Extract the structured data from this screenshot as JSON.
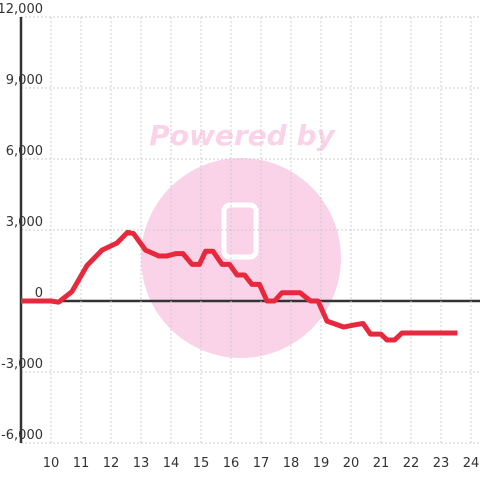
{
  "chart_data": {
    "type": "line",
    "watermark": "Powered by",
    "x": [
      9,
      10,
      10.25,
      10.7,
      11.2,
      11.7,
      12.2,
      12.55,
      12.75,
      13.15,
      13.6,
      13.85,
      14.15,
      14.4,
      14.7,
      14.95,
      15.15,
      15.4,
      15.7,
      15.95,
      16.2,
      16.45,
      16.7,
      16.95,
      17.2,
      17.45,
      17.7,
      18.3,
      18.65,
      18.9,
      19.2,
      19.75,
      20.15,
      20.4,
      20.65,
      21,
      21.2,
      21.45,
      21.7,
      23.55
    ],
    "series": [
      {
        "color": "#e8283c",
        "values": [
          0,
          0,
          -50,
          400,
          1500,
          2150,
          2450,
          2900,
          2850,
          2150,
          1900,
          1900,
          2000,
          2000,
          1550,
          1550,
          2100,
          2100,
          1550,
          1550,
          1100,
          1100,
          700,
          700,
          0,
          0,
          350,
          350,
          0,
          0,
          -850,
          -1100,
          -1000,
          -950,
          -1400,
          -1400,
          -1650,
          -1650,
          -1350,
          -1350
        ]
      }
    ],
    "xlim": [
      9,
      24.3
    ],
    "xticks": [
      10,
      11,
      12,
      13,
      14,
      15,
      16,
      17,
      18,
      19,
      20,
      21,
      22,
      23,
      24
    ],
    "ylim": [
      -6000,
      12000
    ],
    "yticks": [
      {
        "value": -6000,
        "label": "-6,000"
      },
      {
        "value": -3000,
        "label": "-3,000"
      },
      0,
      {
        "value": 3000,
        "label": "3,000"
      },
      {
        "value": 6000,
        "label": "6,000"
      },
      {
        "value": 9000,
        "label": "9,000"
      },
      {
        "value": 12000,
        "label": "12,000"
      }
    ],
    "grid": true
  }
}
